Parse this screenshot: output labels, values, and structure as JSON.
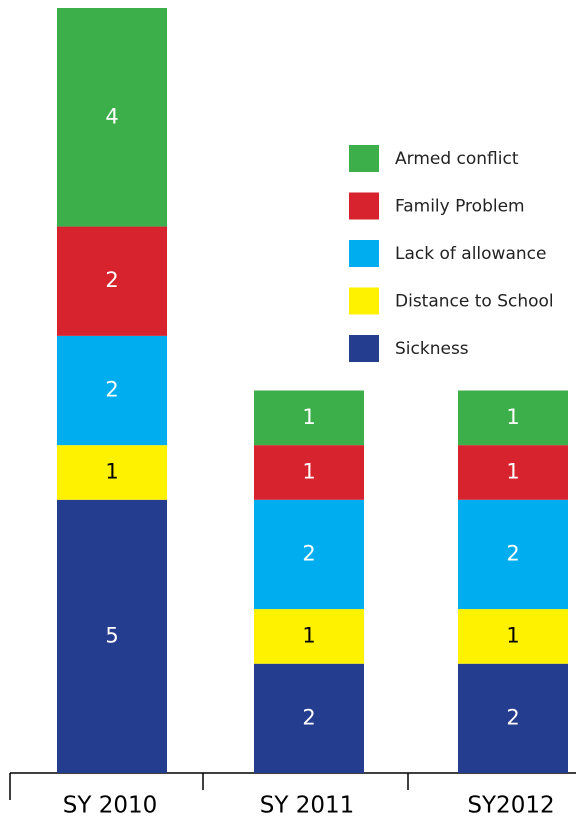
{
  "chart_data": {
    "type": "stacked-bar",
    "categories": [
      "SY 2010",
      "SY 2011",
      "SY2012"
    ],
    "series": [
      {
        "name": "Sickness",
        "color": "#253d8f",
        "values": [
          5,
          2,
          2
        ]
      },
      {
        "name": "Distance to School",
        "color": "#fff200",
        "values": [
          1,
          1,
          1
        ]
      },
      {
        "name": "Lack of allowance",
        "color": "#00adef",
        "values": [
          2,
          2,
          2
        ]
      },
      {
        "name": "Family Problem",
        "color": "#d7232e",
        "values": [
          2,
          1,
          1
        ]
      },
      {
        "name": "Armed conflict",
        "color": "#3cae4a",
        "values": [
          4,
          1,
          1
        ]
      }
    ]
  }
}
